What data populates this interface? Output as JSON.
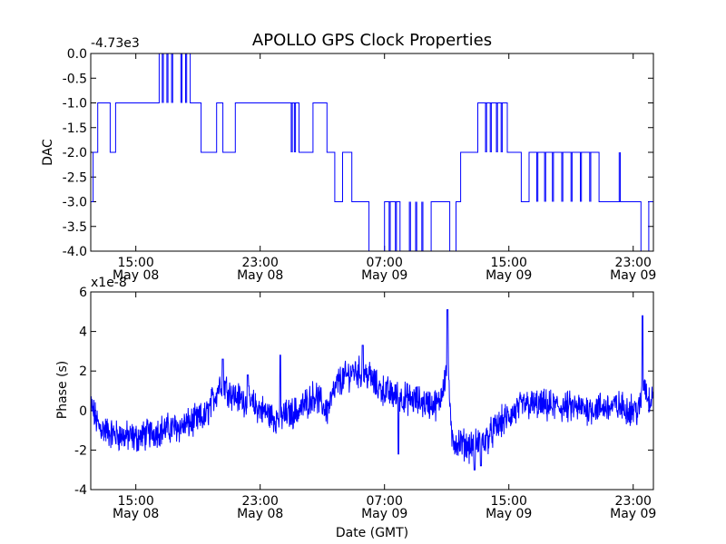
{
  "chart_data": [
    {
      "type": "line",
      "title": "APOLLO GPS Clock Properties",
      "ylabel": "DAC",
      "xlabel": "",
      "offset_label": "-4.73e3",
      "ylim": [
        -4.0,
        0.0
      ],
      "xlim": [
        12.1,
        24.5
      ],
      "x_unit": "hours relative to May 08 00:00 GMT (x ticks at 15, 23, 31, 39, 47)",
      "ytick_labels": [
        "0.0",
        "-0.5",
        "-1.0",
        "-1.5",
        "-2.0",
        "-2.5",
        "-3.0",
        "-3.5",
        "-4.0"
      ],
      "xtick_labels": [
        {
          "time": "15:00",
          "date": "May 08"
        },
        {
          "time": "23:00",
          "date": "May 08"
        },
        {
          "time": "07:00",
          "date": "May 09"
        },
        {
          "time": "15:00",
          "date": "May 09"
        },
        {
          "time": "23:00",
          "date": "May 09"
        }
      ],
      "series_color": "#0000ff",
      "series_name": "DAC",
      "note": "Step-like trace switching between integer levels; key levels approximated by segment.",
      "segments": [
        {
          "x0": 12.1,
          "x1": 12.25,
          "level": -3.0
        },
        {
          "x0": 12.25,
          "x1": 12.55,
          "level": -2.0
        },
        {
          "x0": 12.55,
          "x1": 13.35,
          "level": -1.0
        },
        {
          "x0": 13.35,
          "x1": 13.7,
          "level": -2.0
        },
        {
          "x0": 13.7,
          "x1": 16.5,
          "level": -1.0
        },
        {
          "x0": 16.5,
          "x1": 18.5,
          "level": 0.0
        },
        {
          "x0": 18.5,
          "x1": 19.2,
          "level": -1.0
        },
        {
          "x0": 19.2,
          "x1": 20.2,
          "level": -2.0
        },
        {
          "x0": 20.2,
          "x1": 20.6,
          "level": -1.0
        },
        {
          "x0": 20.6,
          "x1": 21.4,
          "level": -2.0
        },
        {
          "x0": 21.4,
          "x1": 25.5,
          "level": -1.0
        },
        {
          "x0": 25.5,
          "x1": 26.4,
          "level": -2.0
        },
        {
          "x0": 26.4,
          "x1": 27.3,
          "level": -1.0
        },
        {
          "x0": 27.3,
          "x1": 27.8,
          "level": -2.0
        },
        {
          "x0": 27.8,
          "x1": 28.3,
          "level": -3.0
        },
        {
          "x0": 28.3,
          "x1": 28.9,
          "level": -2.0
        },
        {
          "x0": 28.9,
          "x1": 30.0,
          "level": -3.0
        },
        {
          "x0": 30.0,
          "x1": 31.0,
          "level": -4.0
        },
        {
          "x0": 31.0,
          "x1": 32.0,
          "level": -3.0
        },
        {
          "x0": 32.0,
          "x1": 34.0,
          "level": -4.0
        },
        {
          "x0": 34.0,
          "x1": 35.2,
          "level": -3.0
        },
        {
          "x0": 35.2,
          "x1": 35.6,
          "level": -4.0
        },
        {
          "x0": 35.6,
          "x1": 35.9,
          "level": -3.0
        },
        {
          "x0": 35.9,
          "x1": 37.0,
          "level": -2.0
        },
        {
          "x0": 37.0,
          "x1": 38.9,
          "level": -1.0
        },
        {
          "x0": 38.9,
          "x1": 39.8,
          "level": -2.0
        },
        {
          "x0": 39.8,
          "x1": 40.3,
          "level": -3.0
        },
        {
          "x0": 40.3,
          "x1": 44.8,
          "level": -2.0
        },
        {
          "x0": 44.8,
          "x1": 47.5,
          "level": -3.0
        },
        {
          "x0": 47.5,
          "x1": 48.0,
          "level": -4.0
        },
        {
          "x0": 48.0,
          "x1": 48.3,
          "level": -3.0
        }
      ],
      "spikes": [
        {
          "x": 16.7,
          "level": -1.0
        },
        {
          "x": 17.0,
          "level": -1.0
        },
        {
          "x": 17.3,
          "level": -1.0
        },
        {
          "x": 17.9,
          "level": -1.0
        },
        {
          "x": 18.2,
          "level": -1.0
        },
        {
          "x": 25.0,
          "level": -2.0
        },
        {
          "x": 25.2,
          "level": -2.0
        },
        {
          "x": 31.3,
          "level": -4.0
        },
        {
          "x": 31.7,
          "level": -4.0
        },
        {
          "x": 32.6,
          "level": -3.0
        },
        {
          "x": 33.0,
          "level": -3.0
        },
        {
          "x": 33.4,
          "level": -3.0
        },
        {
          "x": 37.5,
          "level": -2.0
        },
        {
          "x": 37.8,
          "level": -2.0
        },
        {
          "x": 38.2,
          "level": -2.0
        },
        {
          "x": 38.5,
          "level": -2.0
        },
        {
          "x": 40.8,
          "level": -3.0
        },
        {
          "x": 41.3,
          "level": -3.0
        },
        {
          "x": 41.8,
          "level": -3.0
        },
        {
          "x": 42.4,
          "level": -3.0
        },
        {
          "x": 43.0,
          "level": -3.0
        },
        {
          "x": 43.6,
          "level": -3.0
        },
        {
          "x": 44.2,
          "level": -3.0
        },
        {
          "x": 46.1,
          "level": -2.0
        }
      ]
    },
    {
      "type": "line",
      "title": "",
      "ylabel": "Phase (s)",
      "xlabel": "Date (GMT)",
      "offset_label": "x1e-8",
      "ylim": [
        -4,
        6
      ],
      "xlim": [
        12.1,
        48.3
      ],
      "ytick_labels": [
        "6",
        "4",
        "2",
        "0",
        "-2",
        "-4"
      ],
      "xtick_labels": [
        {
          "time": "15:00",
          "date": "May 08"
        },
        {
          "time": "23:00",
          "date": "May 08"
        },
        {
          "time": "07:00",
          "date": "May 09"
        },
        {
          "time": "15:00",
          "date": "May 09"
        },
        {
          "time": "23:00",
          "date": "May 09"
        }
      ],
      "series_color": "#0000ff",
      "series_name": "Phase",
      "note": "Noisy trace; baseline approximated at key points (x in hours, y in units of 1e-8 s), noise amplitude approx 0.6.",
      "baseline": [
        {
          "x": 12.1,
          "y": 0.3
        },
        {
          "x": 12.6,
          "y": -0.8
        },
        {
          "x": 13.5,
          "y": -1.2
        },
        {
          "x": 15.0,
          "y": -1.4
        },
        {
          "x": 16.5,
          "y": -1.0
        },
        {
          "x": 18.0,
          "y": -0.8
        },
        {
          "x": 19.5,
          "y": -0.3
        },
        {
          "x": 20.5,
          "y": 1.5
        },
        {
          "x": 21.2,
          "y": 0.8
        },
        {
          "x": 22.5,
          "y": 0.3
        },
        {
          "x": 24.0,
          "y": -0.4
        },
        {
          "x": 25.5,
          "y": 0.0
        },
        {
          "x": 26.5,
          "y": 0.8
        },
        {
          "x": 27.3,
          "y": 0.0
        },
        {
          "x": 28.0,
          "y": 1.4
        },
        {
          "x": 29.0,
          "y": 2.0
        },
        {
          "x": 30.0,
          "y": 1.8
        },
        {
          "x": 30.5,
          "y": 1.2
        },
        {
          "x": 31.5,
          "y": 0.8
        },
        {
          "x": 32.5,
          "y": 0.6
        },
        {
          "x": 33.5,
          "y": 0.4
        },
        {
          "x": 34.5,
          "y": 0.3
        },
        {
          "x": 35.1,
          "y": 2.5
        },
        {
          "x": 35.3,
          "y": -1.5
        },
        {
          "x": 36.5,
          "y": -1.8
        },
        {
          "x": 37.5,
          "y": -1.5
        },
        {
          "x": 38.5,
          "y": -0.6
        },
        {
          "x": 40.0,
          "y": 0.3
        },
        {
          "x": 42.0,
          "y": 0.2
        },
        {
          "x": 44.0,
          "y": 0.1
        },
        {
          "x": 46.0,
          "y": 0.2
        },
        {
          "x": 47.4,
          "y": 0.0
        },
        {
          "x": 47.7,
          "y": 1.5
        },
        {
          "x": 48.0,
          "y": 0.5
        },
        {
          "x": 48.3,
          "y": 1.0
        }
      ],
      "peaks": [
        {
          "x": 20.6,
          "y": 2.6
        },
        {
          "x": 22.2,
          "y": 1.8
        },
        {
          "x": 24.3,
          "y": 2.8
        },
        {
          "x": 29.6,
          "y": 3.3
        },
        {
          "x": 35.05,
          "y": 5.1
        },
        {
          "x": 47.6,
          "y": 4.8
        }
      ],
      "troughs": [
        {
          "x": 31.9,
          "y": -2.2
        },
        {
          "x": 36.8,
          "y": -3.0
        },
        {
          "x": 37.2,
          "y": -2.8
        }
      ]
    }
  ]
}
